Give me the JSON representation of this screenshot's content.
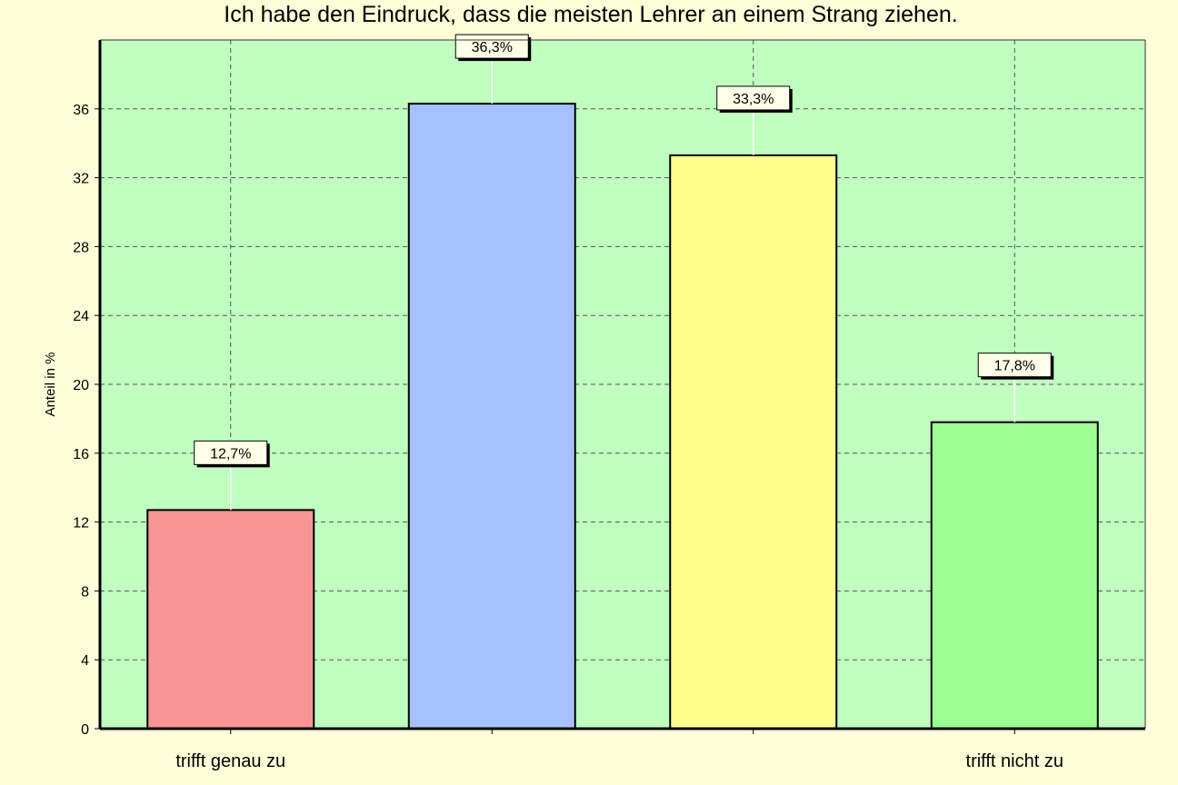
{
  "chart_data": {
    "type": "bar",
    "title": "Ich habe den Eindruck, dass die meisten Lehrer an einem Strang ziehen.",
    "xlabel": "",
    "ylabel": "Anteil in %",
    "categories": [
      "trifft genau zu",
      "",
      "",
      "trifft nicht zu"
    ],
    "values": [
      12.7,
      36.3,
      33.3,
      17.8
    ],
    "data_labels": [
      "12,7%",
      "36,3%",
      "33,3%",
      "17,8%"
    ],
    "bar_colors": [
      "#f79694",
      "#a6c1ff",
      "#ffff8e",
      "#9dff94"
    ],
    "plot_background": "#c0ffc0",
    "page_background": "#fffed8",
    "ylim": [
      0,
      40
    ],
    "yticks": [
      0,
      4,
      8,
      12,
      16,
      20,
      24,
      28,
      32,
      36
    ],
    "grid": true,
    "legend": "none"
  }
}
